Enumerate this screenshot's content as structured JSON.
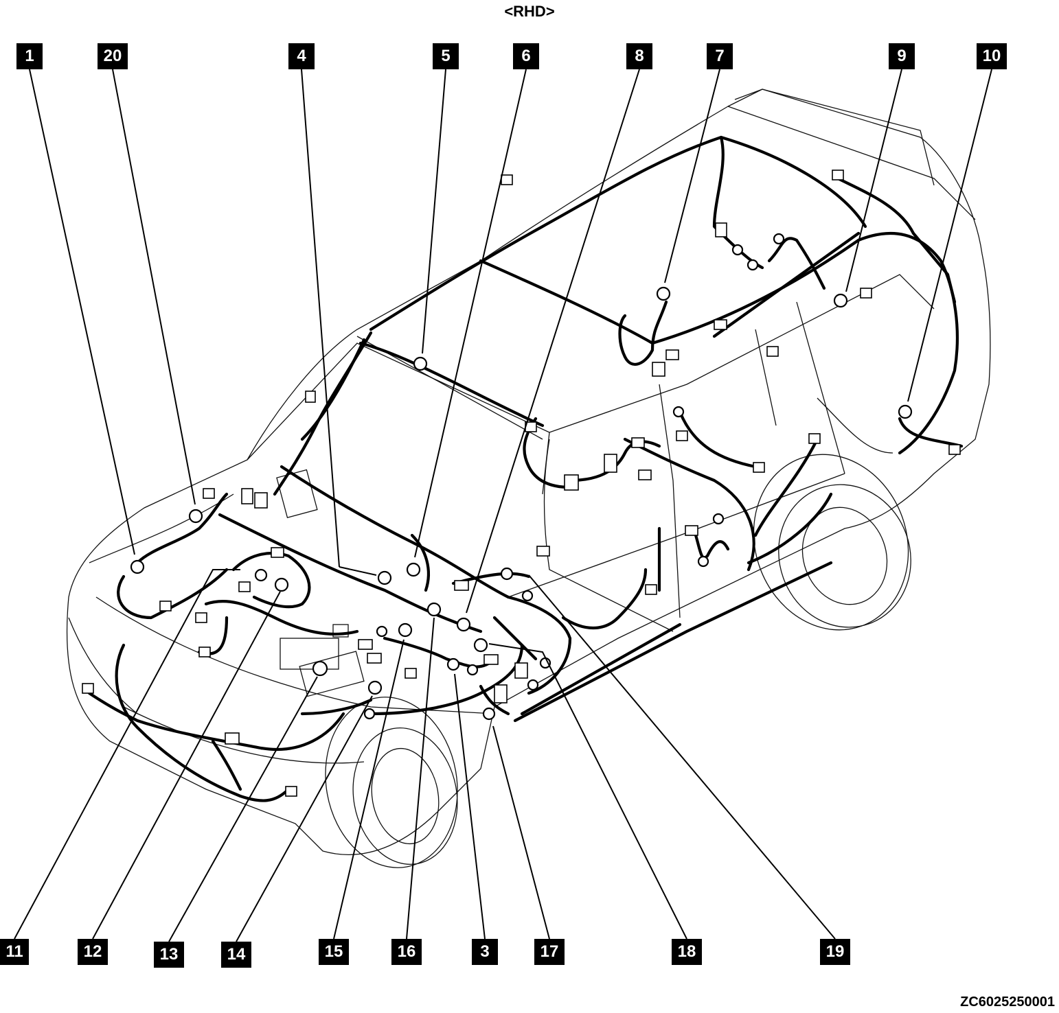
{
  "header": {
    "variant_label": "<RHD>"
  },
  "footer": {
    "figure_code": "ZC6025250001"
  },
  "callouts": {
    "c1": "1",
    "c20": "20",
    "c4": "4",
    "c5": "5",
    "c6": "6",
    "c8": "8",
    "c7": "7",
    "c9": "9",
    "c10": "10",
    "c11": "11",
    "c12": "12",
    "c13": "13",
    "c14": "14",
    "c15": "15",
    "c16": "16",
    "c3": "3",
    "c17": "17",
    "c18": "18",
    "c19": "19"
  },
  "icons": {
    "ground_point": "ring-terminal-icon",
    "connector": "connector-block-icon",
    "callout_marker": "black-square-label"
  },
  "colors": {
    "line": "#000000",
    "callout_bg": "#000000",
    "callout_text": "#ffffff",
    "background": "#ffffff"
  }
}
